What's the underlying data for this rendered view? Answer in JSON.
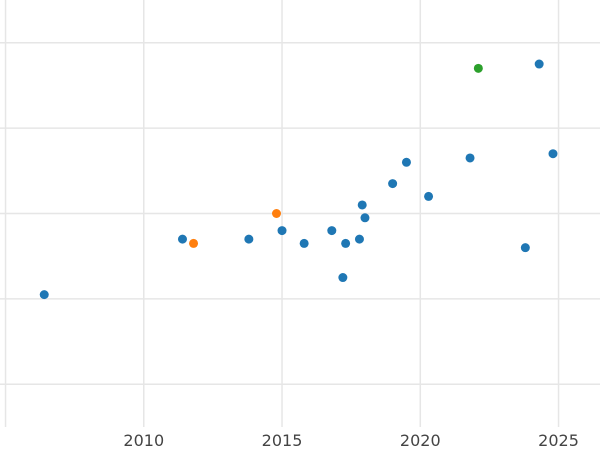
{
  "chart_data": {
    "type": "scatter",
    "grid": true,
    "xlim": [
      2004.8,
      2026.5
    ],
    "ylim": [
      0,
      100
    ],
    "xticks": [
      2005,
      2010,
      2015,
      2020,
      2025
    ],
    "xtick_labels": [
      "",
      "2010",
      "2015",
      "2020",
      "2025"
    ],
    "yticks": [
      10,
      30,
      50,
      70,
      90
    ],
    "series": [
      {
        "color": "#1f77b4",
        "points": [
          {
            "x": 2006.4,
            "y": 31
          },
          {
            "x": 2011.4,
            "y": 44
          },
          {
            "x": 2013.8,
            "y": 44
          },
          {
            "x": 2015.0,
            "y": 46
          },
          {
            "x": 2015.8,
            "y": 43
          },
          {
            "x": 2016.8,
            "y": 46
          },
          {
            "x": 2017.2,
            "y": 35
          },
          {
            "x": 2017.3,
            "y": 43
          },
          {
            "x": 2017.8,
            "y": 44
          },
          {
            "x": 2017.9,
            "y": 52
          },
          {
            "x": 2018.0,
            "y": 49
          },
          {
            "x": 2019.0,
            "y": 57
          },
          {
            "x": 2019.5,
            "y": 62
          },
          {
            "x": 2020.3,
            "y": 54
          },
          {
            "x": 2021.8,
            "y": 63
          },
          {
            "x": 2023.8,
            "y": 42
          },
          {
            "x": 2024.3,
            "y": 85
          },
          {
            "x": 2024.8,
            "y": 64
          }
        ]
      },
      {
        "color": "#ff7f0e",
        "points": [
          {
            "x": 2011.8,
            "y": 43
          },
          {
            "x": 2014.8,
            "y": 50
          }
        ]
      },
      {
        "color": "#2ca02c",
        "points": [
          {
            "x": 2022.1,
            "y": 84
          }
        ]
      }
    ]
  }
}
